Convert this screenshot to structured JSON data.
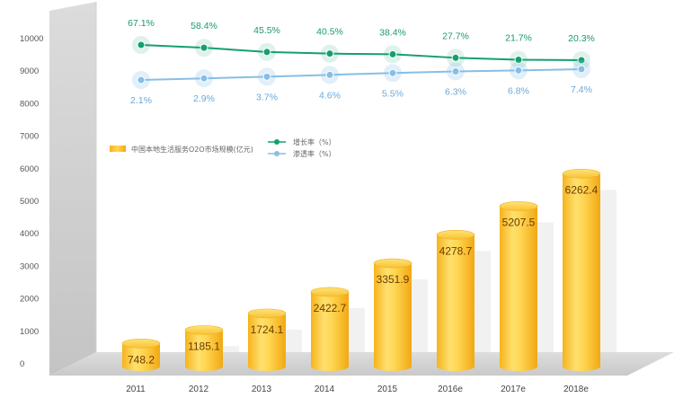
{
  "chart_data": {
    "type": "bar",
    "categories": [
      "2011",
      "2012",
      "2013",
      "2014",
      "2015",
      "2016e",
      "2017e",
      "2018e"
    ],
    "series": [
      {
        "name": "中国本地生活服务O2O市场规模(亿元)",
        "type": "bar",
        "values": [
          748.2,
          1185.1,
          1724.1,
          2422.7,
          3351.9,
          4278.7,
          5207.5,
          6262.4
        ]
      },
      {
        "name": "增长率（%）",
        "type": "line",
        "values": [
          67.1,
          58.4,
          45.5,
          40.5,
          38.4,
          27.7,
          21.7,
          20.3
        ],
        "labels": [
          "67.1%",
          "58.4%",
          "45.5%",
          "40.5%",
          "38.4%",
          "27.7%",
          "21.7%",
          "20.3%"
        ]
      },
      {
        "name": "渗透率（%）",
        "type": "line",
        "values": [
          2.1,
          2.9,
          3.7,
          4.6,
          5.5,
          6.3,
          6.8,
          7.4
        ],
        "labels": [
          "2.1%",
          "2.9%",
          "3.7%",
          "4.6%",
          "5.5%",
          "6.3%",
          "6.8%",
          "7.4%"
        ]
      }
    ],
    "bar_labels": [
      "748.2",
      "1185.1",
      "1724.1",
      "2422.7",
      "3351.9",
      "4278.7",
      "5207.5",
      "6262.4"
    ],
    "yticks": [
      "0",
      "1000",
      "2000",
      "3000",
      "4000",
      "5000",
      "6000",
      "7000",
      "8000",
      "9000",
      "10000"
    ],
    "ylim": [
      0,
      10000
    ],
    "grid": false,
    "legend_position": "middle-left",
    "colors": {
      "bar": "#f7bf2c",
      "growth": "#14a06e",
      "penetration": "#86bfe6"
    }
  }
}
